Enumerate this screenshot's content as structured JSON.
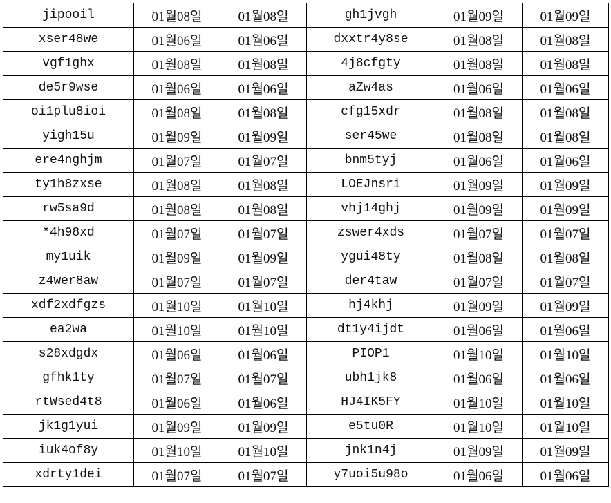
{
  "rows": [
    [
      "jipooil",
      "01월08일",
      "01월08일",
      "gh1jvgh",
      "01월09일",
      "01월09일"
    ],
    [
      "xser48we",
      "01월06일",
      "01월06일",
      "dxxtr4y8se",
      "01월08일",
      "01월08일"
    ],
    [
      "vgf1ghx",
      "01월08일",
      "01월08일",
      "4j8cfgty",
      "01월08일",
      "01월08일"
    ],
    [
      "de5r9wse",
      "01월06일",
      "01월06일",
      "aZw4as",
      "01월06일",
      "01월06일"
    ],
    [
      "oi1plu8ioi",
      "01월08일",
      "01월08일",
      "cfg15xdr",
      "01월08일",
      "01월08일"
    ],
    [
      "yigh15u",
      "01월09일",
      "01월09일",
      "ser45we",
      "01월08일",
      "01월08일"
    ],
    [
      "ere4nghjm",
      "01월07일",
      "01월07일",
      "bnm5tyj",
      "01월06일",
      "01월06일"
    ],
    [
      "ty1h8zxse",
      "01월08일",
      "01월08일",
      "LOEJnsri",
      "01월09일",
      "01월09일"
    ],
    [
      "rw5sa9d",
      "01월08일",
      "01월08일",
      "vhj14ghj",
      "01월09일",
      "01월09일"
    ],
    [
      "*4h98xd",
      "01월07일",
      "01월07일",
      "zswer4xds",
      "01월07일",
      "01월07일"
    ],
    [
      "my1uik",
      "01월09일",
      "01월09일",
      "ygui48ty",
      "01월08일",
      "01월08일"
    ],
    [
      "z4wer8aw",
      "01월07일",
      "01월07일",
      "der4taw",
      "01월07일",
      "01월07일"
    ],
    [
      "xdf2xdfgzs",
      "01월10일",
      "01월10일",
      "hj4khj",
      "01월09일",
      "01월09일"
    ],
    [
      "ea2wa",
      "01월10일",
      "01월10일",
      "dt1y4ijdt",
      "01월06일",
      "01월06일"
    ],
    [
      "s28xdgdx",
      "01월06일",
      "01월06일",
      "PIOP1",
      "01월10일",
      "01월10일"
    ],
    [
      "gfhk1ty",
      "01월07일",
      "01월07일",
      "ubh1jk8",
      "01월06일",
      "01월06일"
    ],
    [
      "rtWsed4t8",
      "01월06일",
      "01월06일",
      "HJ4IK5FY",
      "01월10일",
      "01월10일"
    ],
    [
      "jk1g1yui",
      "01월09일",
      "01월09일",
      "e5tu0R",
      "01월10일",
      "01월10일"
    ],
    [
      "iuk4of8y",
      "01월10일",
      "01월10일",
      "jnk1n4j",
      "01월09일",
      "01월09일"
    ],
    [
      "xdrty1dei",
      "01월07일",
      "01월07일",
      "y7uoi5u98o",
      "01월06일",
      "01월06일"
    ]
  ]
}
